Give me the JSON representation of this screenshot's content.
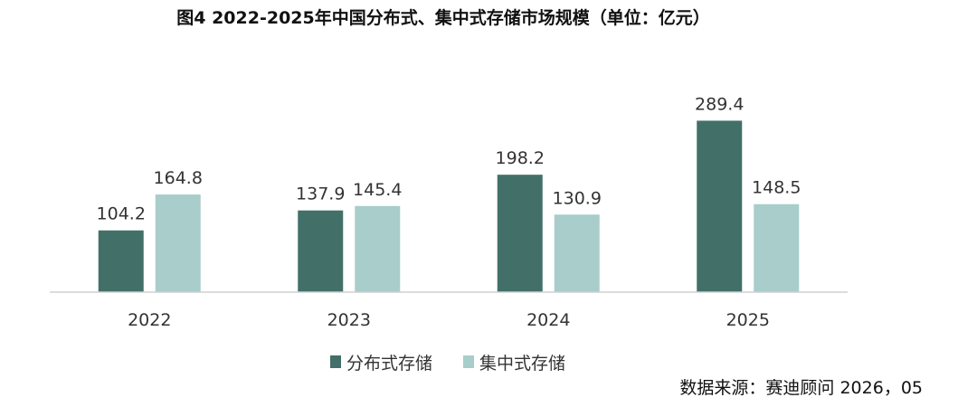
{
  "chart_data": {
    "type": "bar",
    "title": "图4 2022-2025年中国分布式、集中式存储市场规模（单位：亿元）",
    "categories": [
      "2022",
      "2023",
      "2024",
      "2025"
    ],
    "series": [
      {
        "name": "分布式存储",
        "values": [
          104.2,
          137.9,
          198.2,
          289.4
        ],
        "color": "#427068"
      },
      {
        "name": "集中式存储",
        "values": [
          164.8,
          145.4,
          130.9,
          148.5
        ],
        "color": "#a8cdcb"
      }
    ],
    "ylim": [
      0,
      300
    ],
    "grid": false,
    "legend_position": "bottom",
    "source": "数据来源：赛迪顾问 2026，05"
  }
}
